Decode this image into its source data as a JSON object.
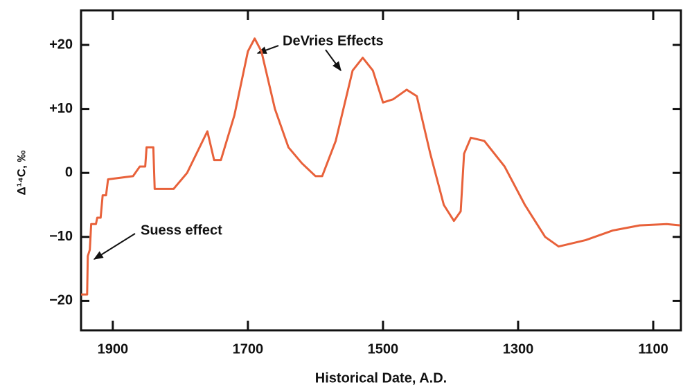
{
  "chart_data": {
    "type": "line",
    "x_label": "Historical Date, A.D.",
    "y_label": "Δ¹⁴C, ‰",
    "annotations": [
      "DeVries Effects",
      "Suess effect"
    ],
    "x": [
      1947,
      1938,
      1937,
      1934,
      1932,
      1925,
      1923,
      1918,
      1915,
      1910,
      1907,
      1870,
      1860,
      1852,
      1850,
      1840,
      1838,
      1810,
      1790,
      1760,
      1750,
      1740,
      1720,
      1700,
      1690,
      1680,
      1660,
      1640,
      1620,
      1600,
      1590,
      1570,
      1545,
      1530,
      1515,
      1500,
      1485,
      1465,
      1450,
      1430,
      1410,
      1395,
      1385,
      1380,
      1370,
      1350,
      1320,
      1290,
      1260,
      1240,
      1200,
      1160,
      1120,
      1080,
      1060
    ],
    "series": [
      {
        "name": "Δ14C",
        "color": "#e8613a",
        "values": [
          -19,
          -19,
          -13,
          -12,
          -8,
          -8,
          -7,
          -7,
          -3.5,
          -3.5,
          -1,
          -0.5,
          1,
          1,
          4,
          4,
          -2.5,
          -2.5,
          0,
          6.5,
          2,
          2,
          9,
          19,
          21,
          19,
          10,
          4,
          1.5,
          -0.5,
          -0.5,
          5,
          16,
          18,
          16,
          11,
          11.5,
          13,
          12,
          3,
          -5,
          -7.5,
          -6,
          3,
          5.5,
          5,
          1,
          -5,
          -10,
          -11.5,
          -10.5,
          -9,
          -8.2,
          -8,
          -8.2
        ]
      }
    ],
    "xlim": [
      1947,
      1059
    ],
    "xticks": [
      1900,
      1700,
      1500,
      1300,
      1100
    ],
    "ylim": [
      -24.6,
      25.4
    ],
    "yticks": [
      {
        "value": 20,
        "label": "+20"
      },
      {
        "value": 10,
        "label": "+10"
      },
      0,
      {
        "value": -10,
        "label": "−10"
      },
      {
        "value": -20,
        "label": "−20"
      }
    ]
  }
}
